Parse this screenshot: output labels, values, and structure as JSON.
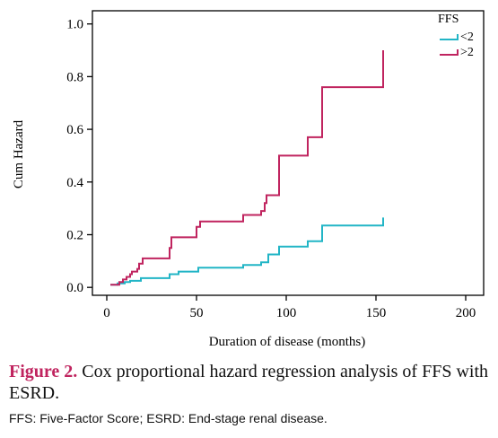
{
  "chart_data": {
    "type": "line",
    "step": true,
    "title": "",
    "xlabel": "Duration of disease (months)",
    "ylabel": "Cum Hazard",
    "xlim": [
      -8,
      210
    ],
    "ylim": [
      -0.03,
      1.05
    ],
    "x_ticks": [
      0,
      50,
      100,
      150,
      200
    ],
    "y_ticks": [
      0.0,
      0.2,
      0.4,
      0.6,
      0.8,
      1.0
    ],
    "y_tick_labels": [
      "0.0",
      "0.2",
      "0.4",
      "0.6",
      "0.8",
      "1.0"
    ],
    "grid": false,
    "legend": {
      "title": "FFS",
      "position": "top-right"
    },
    "series": [
      {
        "name": "<2",
        "color": "#22b5c6",
        "points": [
          [
            2,
            0.01
          ],
          [
            6,
            0.01
          ],
          [
            6,
            0.015
          ],
          [
            10,
            0.015
          ],
          [
            10,
            0.02
          ],
          [
            13,
            0.02
          ],
          [
            13,
            0.025
          ],
          [
            19,
            0.025
          ],
          [
            19,
            0.035
          ],
          [
            35,
            0.035
          ],
          [
            35,
            0.05
          ],
          [
            40,
            0.05
          ],
          [
            40,
            0.06
          ],
          [
            51,
            0.06
          ],
          [
            51,
            0.075
          ],
          [
            76,
            0.075
          ],
          [
            76,
            0.085
          ],
          [
            86,
            0.085
          ],
          [
            86,
            0.095
          ],
          [
            90,
            0.095
          ],
          [
            90,
            0.125
          ],
          [
            96,
            0.125
          ],
          [
            96,
            0.155
          ],
          [
            112,
            0.155
          ],
          [
            112,
            0.175
          ],
          [
            120,
            0.175
          ],
          [
            120,
            0.235
          ],
          [
            154,
            0.235
          ],
          [
            154,
            0.265
          ]
        ]
      },
      {
        "name": ">2",
        "color": "#c0245f",
        "points": [
          [
            2,
            0.01
          ],
          [
            7,
            0.01
          ],
          [
            7,
            0.02
          ],
          [
            9,
            0.02
          ],
          [
            9,
            0.03
          ],
          [
            11,
            0.03
          ],
          [
            11,
            0.04
          ],
          [
            13,
            0.04
          ],
          [
            13,
            0.05
          ],
          [
            14,
            0.05
          ],
          [
            14,
            0.06
          ],
          [
            17,
            0.06
          ],
          [
            17,
            0.07
          ],
          [
            18,
            0.07
          ],
          [
            18,
            0.09
          ],
          [
            20,
            0.09
          ],
          [
            20,
            0.11
          ],
          [
            35,
            0.11
          ],
          [
            35,
            0.15
          ],
          [
            36,
            0.15
          ],
          [
            36,
            0.19
          ],
          [
            50,
            0.19
          ],
          [
            50,
            0.23
          ],
          [
            52,
            0.23
          ],
          [
            52,
            0.25
          ],
          [
            76,
            0.25
          ],
          [
            76,
            0.275
          ],
          [
            86,
            0.275
          ],
          [
            86,
            0.29
          ],
          [
            88,
            0.29
          ],
          [
            88,
            0.32
          ],
          [
            89,
            0.32
          ],
          [
            89,
            0.35
          ],
          [
            96,
            0.35
          ],
          [
            96,
            0.5
          ],
          [
            112,
            0.5
          ],
          [
            112,
            0.57
          ],
          [
            120,
            0.57
          ],
          [
            120,
            0.76
          ],
          [
            154,
            0.76
          ],
          [
            154,
            0.9
          ]
        ]
      }
    ]
  },
  "caption": {
    "fig_label": "Figure 2.",
    "text": " Cox proportional hazard regression analysis of FFS with ESRD."
  },
  "footnote": "FFS: Five-Factor Score; ESRD:  End-stage renal disease."
}
